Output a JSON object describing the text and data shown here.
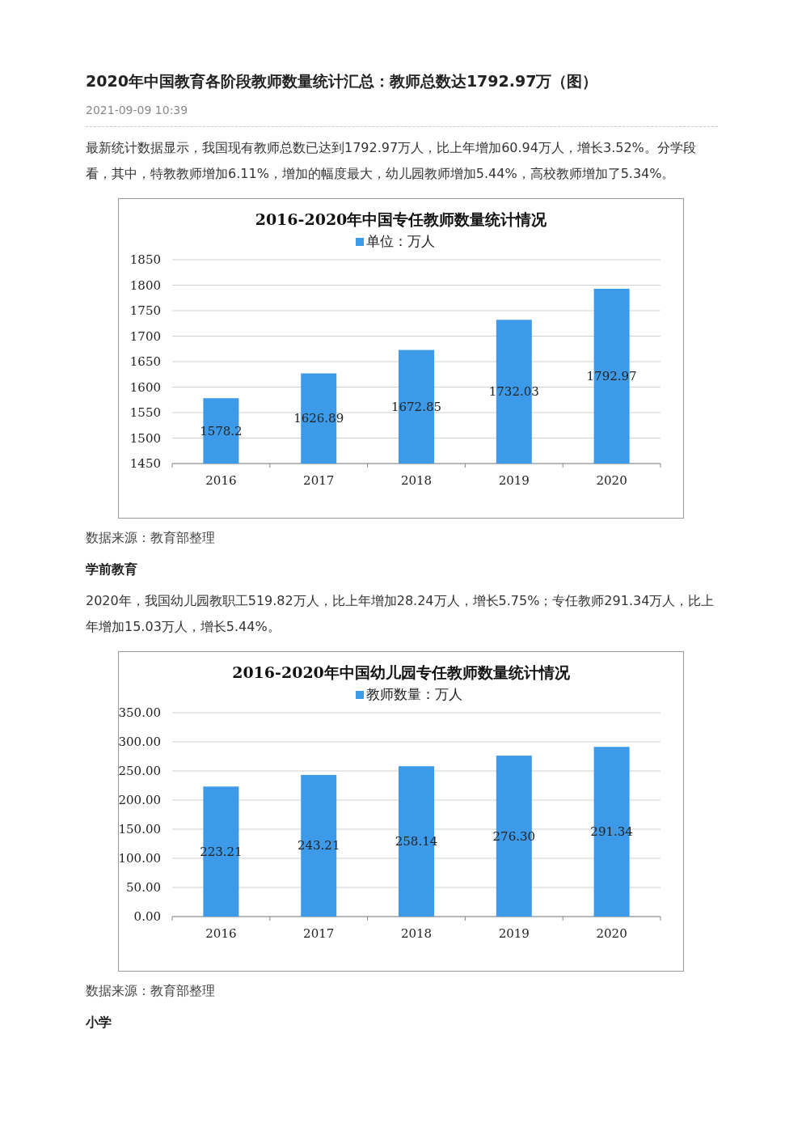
{
  "chart_data": [
    {
      "type": "other",
      "title": "2020年中国教育各阶段教师数量统计汇总：教师总数达1792.97万（图）",
      "subtitle": "2021-09-09 10:39",
      "annotations": [
        "最新统计数据显示，我国现有教师总数已达到1792.97万人，比上年增加60.94万人，增长3.52%。分学段看，其中，特教教师增加6.11%，增加的幅度最大，幼儿园教师增加5.44%，高校教师增加了5.34%。"
      ]
    },
    {
      "type": "bar",
      "title": "2016-2020年中国专任教师数量统计情况",
      "categories": [
        "2016",
        "2017",
        "2018",
        "2019",
        "2020"
      ],
      "series": [
        {
          "name": "单位：万人",
          "color": "#3d9ae8",
          "values": [
            1578.2,
            1626.89,
            1672.85,
            1732.03,
            1792.97
          ]
        }
      ],
      "ylim": [
        1450,
        1850
      ],
      "yticks": [
        1450,
        1500,
        1550,
        1600,
        1650,
        1700,
        1750,
        1800,
        1850
      ],
      "grid": "y",
      "legend": "top",
      "data_labels": true,
      "annotations": [
        "数据来源：教育部整理"
      ]
    },
    {
      "type": "other",
      "title": "学前教育",
      "annotations": [
        "2020年，我国幼儿园教职工519.82万人，比上年增加28.24万人，增长5.75%；专任教师291.34万人，比上年增加15.03万人，增长5.44%。"
      ]
    },
    {
      "type": "bar",
      "title": "2016-2020年中国幼儿园专任教师数量统计情况",
      "categories": [
        "2016",
        "2017",
        "2018",
        "2019",
        "2020"
      ],
      "series": [
        {
          "name": "教师数量：万人",
          "color": "#3d9ae8",
          "values": [
            223.21,
            243.21,
            258.14,
            276.3,
            291.34
          ]
        }
      ],
      "value_labels": [
        "223.21",
        "243.21",
        "258.14",
        "276.30",
        "291.34"
      ],
      "ylim": [
        0,
        350
      ],
      "yticks": [
        {
          "value": 0,
          "label": "0.00"
        },
        {
          "value": 50,
          "label": "50.00"
        },
        {
          "value": 100,
          "label": "100.00"
        },
        {
          "value": 150,
          "label": "150.00"
        },
        {
          "value": 200,
          "label": "200.00"
        },
        {
          "value": 250,
          "label": "250.00"
        },
        {
          "value": 300,
          "label": "300.00"
        },
        {
          "value": 350,
          "label": "350.00"
        }
      ],
      "grid": "y",
      "legend": "top",
      "annotations": [
        "数据来源：教育部整理"
      ]
    },
    {
      "type": "other",
      "title": "小学"
    }
  ]
}
